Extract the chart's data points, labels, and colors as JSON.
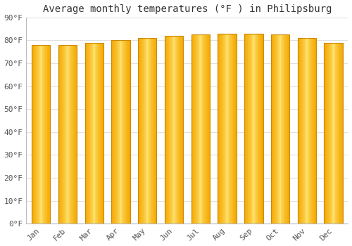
{
  "title": "Average monthly temperatures (°F ) in Philipsburg",
  "months": [
    "Jan",
    "Feb",
    "Mar",
    "Apr",
    "May",
    "Jun",
    "Jul",
    "Aug",
    "Sep",
    "Oct",
    "Nov",
    "Dec"
  ],
  "values": [
    78,
    78,
    79,
    80,
    81,
    82,
    82.5,
    83,
    83,
    82.5,
    81,
    79
  ],
  "bar_color_center": "#FFE87A",
  "bar_color_edge": "#F5A800",
  "ylim": [
    0,
    90
  ],
  "yticks": [
    0,
    10,
    20,
    30,
    40,
    50,
    60,
    70,
    80,
    90
  ],
  "ytick_labels": [
    "0°F",
    "10°F",
    "20°F",
    "30°F",
    "40°F",
    "50°F",
    "60°F",
    "70°F",
    "80°F",
    "90°F"
  ],
  "background_color": "#FFFFFF",
  "grid_color": "#E0E0E0",
  "title_fontsize": 10,
  "tick_fontsize": 8,
  "bar_edge_color": "#CC8800",
  "bar_width": 0.7
}
